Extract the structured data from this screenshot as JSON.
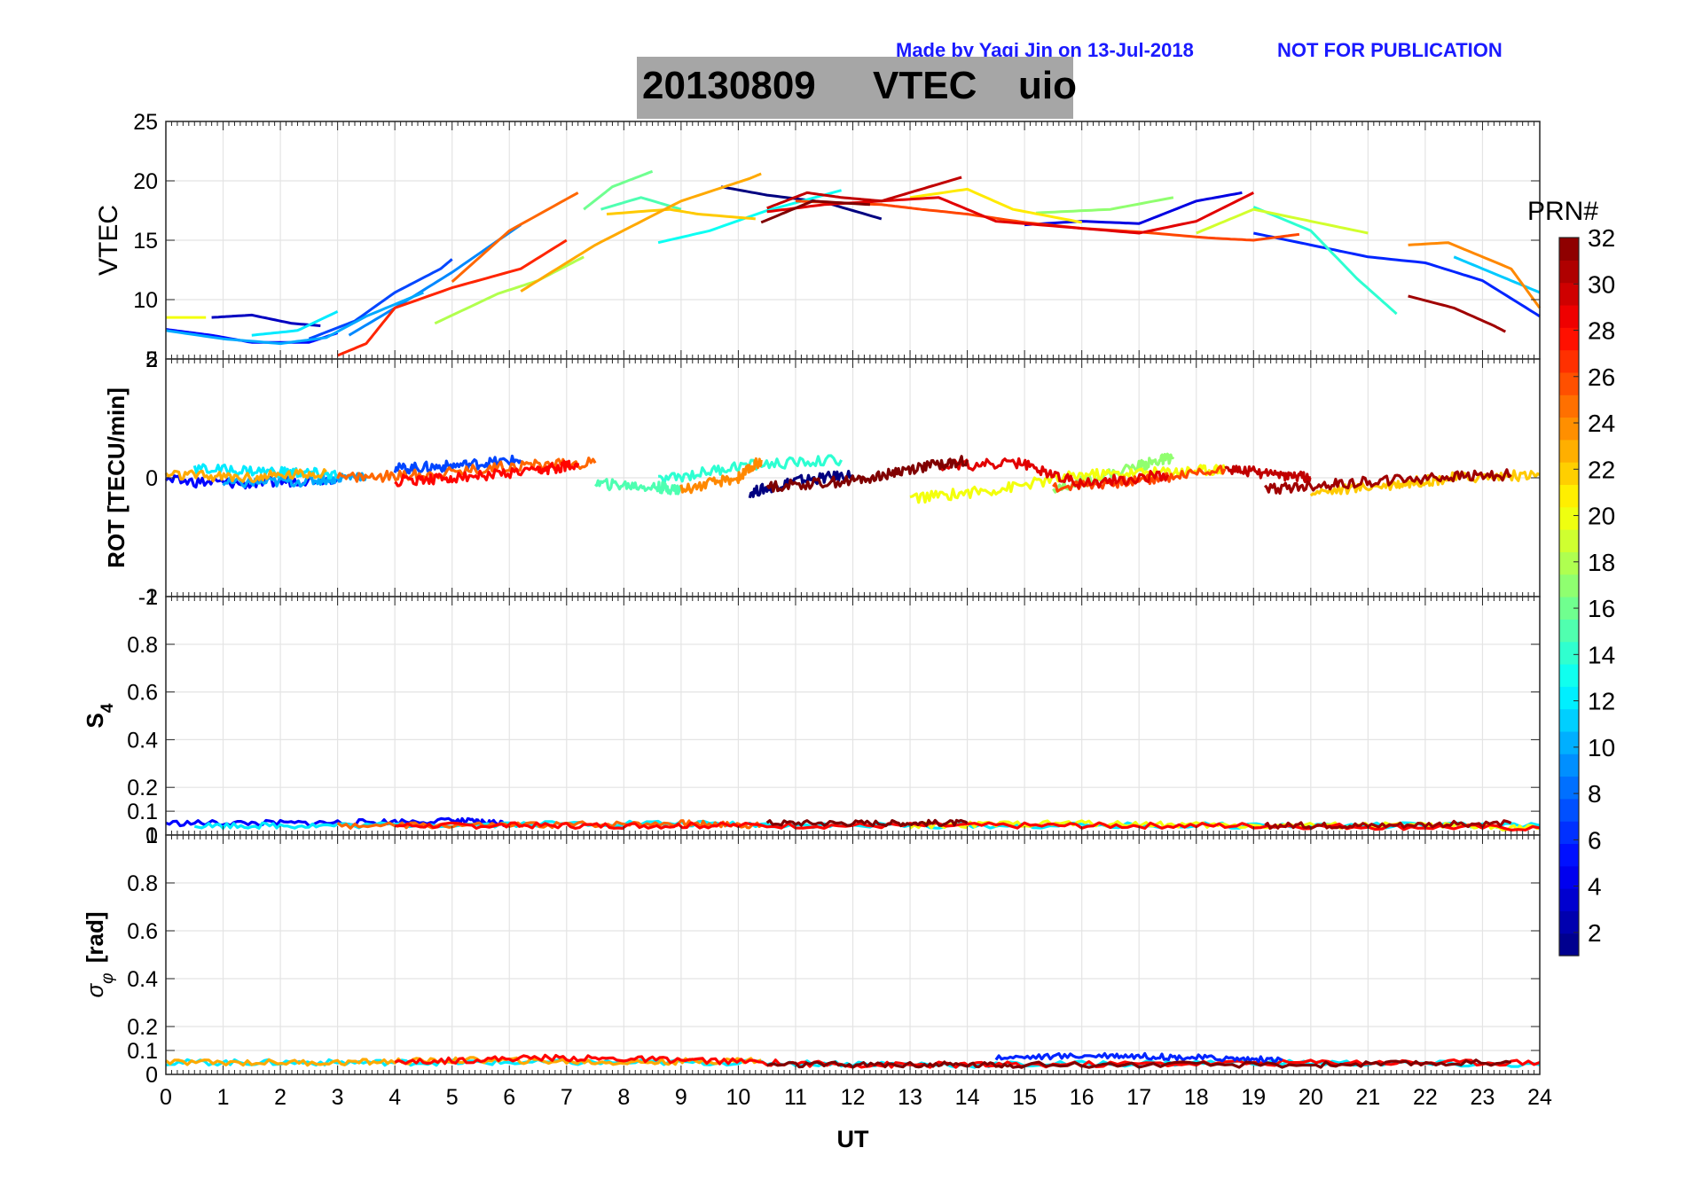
{
  "header": {
    "credit": "Made by Yaqi Jin on 13-Jul-2018",
    "notice": "NOT FOR PUBLICATION",
    "title_date": "20130809",
    "title_variable": "VTEC",
    "title_station": "uio",
    "credit_color": "#1a1aff"
  },
  "chart_data": [
    {
      "id": "vtec",
      "type": "line",
      "ylabel": "VTEC",
      "xlabel": "",
      "xlim": [
        0,
        24
      ],
      "ylim": [
        5,
        25
      ],
      "yticks": [
        5,
        10,
        15,
        20,
        25
      ],
      "series": [
        {
          "name": "PRN 1",
          "prn": 1,
          "x": [
            9.7,
            10.5,
            11.5,
            12.5
          ],
          "values": [
            19.5,
            18.8,
            18.2,
            16.8
          ]
        },
        {
          "name": "PRN 3",
          "prn": 3,
          "x": [
            0.8,
            1.5,
            2.2,
            2.7
          ],
          "values": [
            8.5,
            8.7,
            8.0,
            7.8
          ]
        },
        {
          "name": "PRN 4",
          "prn": 4,
          "x": [
            15.0,
            16.0,
            17.0,
            18.0,
            18.8
          ],
          "values": [
            16.3,
            16.6,
            16.4,
            18.3,
            19.0
          ]
        },
        {
          "name": "PRN 5",
          "prn": 5,
          "x": [
            0.0,
            0.8,
            1.5,
            2.5,
            3.0
          ],
          "values": [
            7.5,
            7.0,
            6.4,
            6.4,
            7.2
          ]
        },
        {
          "name": "PRN 6",
          "prn": 6,
          "x": [
            19.0,
            20.0,
            21.0,
            22.0,
            23.0,
            24.0
          ],
          "values": [
            15.6,
            14.6,
            13.6,
            13.1,
            11.6,
            8.6
          ]
        },
        {
          "name": "PRN 7",
          "prn": 7,
          "x": [
            2.5,
            3.3,
            4.0,
            4.8,
            5.0
          ],
          "values": [
            6.7,
            8.2,
            10.6,
            12.6,
            13.4
          ]
        },
        {
          "name": "PRN 9",
          "prn": 9,
          "x": [
            3.2,
            4.0,
            5.0,
            6.2
          ],
          "values": [
            7.0,
            9.3,
            12.3,
            16.3
          ]
        },
        {
          "name": "PRN 10",
          "prn": 10,
          "x": [
            0.0,
            1.0,
            2.0,
            2.8,
            3.5,
            4.5
          ],
          "values": [
            7.4,
            6.7,
            6.3,
            6.8,
            8.6,
            10.6
          ]
        },
        {
          "name": "PRN 11",
          "prn": 11,
          "x": [
            22.5,
            23.5,
            24.0
          ],
          "values": [
            13.6,
            11.6,
            10.6
          ]
        },
        {
          "name": "PRN 12",
          "prn": 12,
          "x": [
            1.5,
            2.3,
            3.0
          ],
          "values": [
            7.0,
            7.4,
            9.0
          ]
        },
        {
          "name": "PRN 13",
          "prn": 13,
          "x": [
            8.6,
            9.5,
            10.5,
            11.8
          ],
          "values": [
            14.8,
            15.8,
            17.5,
            19.2
          ]
        },
        {
          "name": "PRN 14",
          "prn": 14,
          "x": [
            19.0,
            20.0,
            20.8,
            21.5
          ],
          "values": [
            17.8,
            15.8,
            11.8,
            8.8
          ]
        },
        {
          "name": "PRN 15",
          "prn": 15,
          "x": [
            7.6,
            8.3,
            9.0
          ],
          "values": [
            17.6,
            18.6,
            17.6
          ]
        },
        {
          "name": "PRN 16",
          "prn": 16,
          "x": [
            7.3,
            7.8,
            8.5
          ],
          "values": [
            17.6,
            19.5,
            20.8
          ]
        },
        {
          "name": "PRN 17",
          "prn": 17,
          "x": [
            15.2,
            16.5,
            17.6
          ],
          "values": [
            17.3,
            17.6,
            18.6
          ]
        },
        {
          "name": "PRN 18",
          "prn": 18,
          "x": [
            4.7,
            5.8,
            6.5,
            7.3
          ],
          "values": [
            8.0,
            10.5,
            11.6,
            13.6
          ]
        },
        {
          "name": "PRN 19",
          "prn": 19,
          "x": [
            18.0,
            19.0,
            20.0,
            21.0
          ],
          "values": [
            15.6,
            17.6,
            16.6,
            15.6
          ]
        },
        {
          "name": "PRN 20",
          "prn": 20,
          "x": [
            0.0,
            0.7
          ],
          "values": [
            8.5,
            8.5
          ]
        },
        {
          "name": "PRN 21",
          "prn": 21,
          "x": [
            13.0,
            14.0,
            14.8,
            16.0
          ],
          "values": [
            18.6,
            19.3,
            17.6,
            16.5
          ]
        },
        {
          "name": "PRN 22",
          "prn": 22,
          "x": [
            7.7,
            8.8,
            9.3,
            10.3
          ],
          "values": [
            17.2,
            17.6,
            17.2,
            16.8
          ]
        },
        {
          "name": "PRN 23",
          "prn": 23,
          "x": [
            6.2,
            7.5,
            9.0,
            10.2,
            10.4
          ],
          "values": [
            10.7,
            14.6,
            18.3,
            20.2,
            20.6
          ]
        },
        {
          "name": "PRN 24",
          "prn": 24,
          "x": [
            21.7,
            22.4,
            23.5,
            24.0
          ],
          "values": [
            14.6,
            14.8,
            12.6,
            9.3
          ]
        },
        {
          "name": "PRN 25",
          "prn": 25,
          "x": [
            5.0,
            6.0,
            7.2
          ],
          "values": [
            11.5,
            15.8,
            19.0
          ]
        },
        {
          "name": "PRN 26",
          "prn": 26,
          "x": [
            11.0,
            12.5,
            13.2,
            14.0,
            15.0,
            16.0,
            17.0,
            18.2,
            19.0,
            19.8
          ],
          "values": [
            18.3,
            18.0,
            17.6,
            17.2,
            16.5,
            16.0,
            15.7,
            15.2,
            15.0,
            15.5
          ]
        },
        {
          "name": "PRN 27",
          "prn": 27,
          "x": [
            3.0,
            3.5,
            4.0,
            5.0,
            6.2,
            7.0
          ],
          "values": [
            5.3,
            6.3,
            9.3,
            11.0,
            12.6,
            15.0
          ]
        },
        {
          "name": "PRN 29",
          "prn": 29,
          "x": [
            10.5,
            11.5,
            12.5,
            13.5,
            14.5,
            16.0,
            17.0,
            18.0,
            19.0
          ],
          "values": [
            17.4,
            18.0,
            18.3,
            18.6,
            16.6,
            16.0,
            15.6,
            16.6,
            19.0
          ]
        },
        {
          "name": "PRN 30",
          "prn": 30,
          "x": [
            10.5,
            11.2,
            11.8,
            12.5,
            13.2,
            13.9
          ],
          "values": [
            17.7,
            19.0,
            18.6,
            18.3,
            19.3,
            20.3
          ]
        },
        {
          "name": "PRN 31",
          "prn": 31,
          "x": [
            21.7,
            22.5,
            23.2,
            23.4
          ],
          "values": [
            10.3,
            9.3,
            7.8,
            7.3
          ]
        },
        {
          "name": "PRN 32",
          "prn": 32,
          "x": [
            10.4,
            11.3,
            12.3
          ],
          "values": [
            16.5,
            18.3,
            18.0
          ]
        }
      ]
    },
    {
      "id": "rot",
      "type": "line",
      "ylabel": "ROT [TECU/min]",
      "xlabel": "",
      "xlim": [
        0,
        24
      ],
      "ylim": [
        -2,
        2
      ],
      "yticks": [
        -2,
        0,
        2
      ],
      "series": [
        {
          "name": "PRN 1",
          "prn": 1,
          "x": [
            10.2,
            11.0,
            12.0
          ],
          "values": [
            -0.25,
            -0.05,
            0.05
          ]
        },
        {
          "name": "PRN 5",
          "prn": 5,
          "x": [
            0.0,
            1.5,
            3.0
          ],
          "values": [
            -0.05,
            -0.1,
            0.0
          ]
        },
        {
          "name": "PRN 7",
          "prn": 7,
          "x": [
            4.0,
            5.0,
            6.2
          ],
          "values": [
            0.15,
            0.2,
            0.3
          ]
        },
        {
          "name": "PRN 10",
          "prn": 10,
          "x": [
            1.0,
            2.5,
            3.5
          ],
          "values": [
            -0.1,
            -0.05,
            0.05
          ]
        },
        {
          "name": "PRN 12",
          "prn": 12,
          "x": [
            0.5,
            2.0,
            3.0
          ],
          "values": [
            0.15,
            0.1,
            0.05
          ]
        },
        {
          "name": "PRN 14",
          "prn": 14,
          "x": [
            8.6,
            10.0,
            11.8
          ],
          "values": [
            -0.05,
            0.2,
            0.3
          ]
        },
        {
          "name": "PRN 15",
          "prn": 15,
          "x": [
            7.5,
            8.5,
            9.0
          ],
          "values": [
            -0.1,
            -0.15,
            -0.2
          ]
        },
        {
          "name": "PRN 17",
          "prn": 17,
          "x": [
            15.5,
            17.0,
            17.6
          ],
          "values": [
            -0.2,
            0.2,
            0.35
          ]
        },
        {
          "name": "PRN 20",
          "prn": 20,
          "x": [
            13.0,
            14.5,
            16.0,
            17.5,
            18.5
          ],
          "values": [
            -0.35,
            -0.2,
            0.05,
            0.1,
            0.15
          ]
        },
        {
          "name": "PRN 22",
          "prn": 22,
          "x": [
            20.0,
            21.5,
            22.5,
            24.0
          ],
          "values": [
            -0.25,
            -0.1,
            0.0,
            0.05
          ]
        },
        {
          "name": "PRN 23",
          "prn": 23,
          "x": [
            0.0,
            1.5,
            2.8
          ],
          "values": [
            0.05,
            0.0,
            0.1
          ]
        },
        {
          "name": "PRN 24",
          "prn": 24,
          "x": [
            9.0,
            10.0,
            10.4
          ],
          "values": [
            -0.2,
            0.0,
            0.3
          ]
        },
        {
          "name": "PRN 25",
          "prn": 25,
          "x": [
            3.0,
            4.5,
            6.0,
            7.5
          ],
          "values": [
            0.0,
            0.05,
            0.2,
            0.25
          ]
        },
        {
          "name": "PRN 26",
          "prn": 26,
          "x": [
            15.5,
            17.0,
            18.5
          ],
          "values": [
            -0.15,
            -0.05,
            0.15
          ]
        },
        {
          "name": "PRN 28",
          "prn": 28,
          "x": [
            4.0,
            5.0,
            6.5,
            7.2
          ],
          "values": [
            -0.05,
            0.0,
            0.1,
            0.25
          ]
        },
        {
          "name": "PRN 29",
          "prn": 29,
          "x": [
            13.5,
            14.9,
            16.0,
            17.5
          ],
          "values": [
            0.2,
            0.25,
            -0.1,
            0.05
          ]
        },
        {
          "name": "PRN 30",
          "prn": 30,
          "x": [
            18.5,
            19.5,
            20.0
          ],
          "values": [
            0.15,
            0.05,
            0.0
          ]
        },
        {
          "name": "PRN 31",
          "prn": 31,
          "x": [
            19.2,
            20.5,
            22.0,
            23.5
          ],
          "values": [
            -0.2,
            -0.1,
            0.0,
            0.05
          ]
        },
        {
          "name": "PRN 32",
          "prn": 32,
          "x": [
            10.5,
            12.0,
            13.0,
            14.0
          ],
          "values": [
            -0.15,
            -0.05,
            0.15,
            0.3
          ]
        }
      ]
    },
    {
      "id": "s4",
      "type": "line",
      "ylabel": "S4",
      "xlabel": "",
      "xlim": [
        0,
        24
      ],
      "ylim": [
        0,
        1
      ],
      "yticks": [
        0,
        0.1,
        0.2,
        0.4,
        0.6,
        0.8,
        1
      ],
      "series": [
        {
          "name": "PRN 5",
          "prn": 5,
          "x": [
            0.0,
            2.5,
            5.0,
            6.0
          ],
          "values": [
            0.05,
            0.05,
            0.06,
            0.05
          ]
        },
        {
          "name": "PRN 12",
          "prn": 12,
          "x": [
            0.5,
            3.0,
            8.0,
            12.0,
            18.0,
            24.0
          ],
          "values": [
            0.04,
            0.04,
            0.05,
            0.04,
            0.04,
            0.04
          ]
        },
        {
          "name": "PRN 20",
          "prn": 20,
          "x": [
            13.0,
            16.0,
            18.5,
            22.0,
            24.0
          ],
          "values": [
            0.04,
            0.05,
            0.04,
            0.04,
            0.03
          ]
        },
        {
          "name": "PRN 25",
          "prn": 25,
          "x": [
            3.0,
            6.0,
            9.0,
            10.4
          ],
          "values": [
            0.04,
            0.04,
            0.05,
            0.04
          ]
        },
        {
          "name": "PRN 28",
          "prn": 28,
          "x": [
            4.0,
            7.0,
            10.0,
            15.0,
            19.0,
            24.0
          ],
          "values": [
            0.04,
            0.04,
            0.04,
            0.04,
            0.04,
            0.03
          ]
        },
        {
          "name": "PRN 32",
          "prn": 32,
          "x": [
            10.5,
            12.5,
            14.0
          ],
          "values": [
            0.05,
            0.05,
            0.05
          ]
        },
        {
          "name": "PRN 31",
          "prn": 31,
          "x": [
            19.2,
            21.0,
            23.5
          ],
          "values": [
            0.04,
            0.04,
            0.05
          ]
        }
      ]
    },
    {
      "id": "sigma-phi",
      "type": "line",
      "ylabel": "σφ [rad]",
      "xlabel": "UT",
      "xlim": [
        0,
        24
      ],
      "xticks": [
        0,
        1,
        2,
        3,
        4,
        5,
        6,
        7,
        8,
        9,
        10,
        11,
        12,
        13,
        14,
        15,
        16,
        17,
        18,
        19,
        20,
        21,
        22,
        23,
        24
      ],
      "ylim": [
        0,
        1
      ],
      "yticks": [
        0,
        0.1,
        0.2,
        0.4,
        0.6,
        0.8,
        1
      ],
      "series": [
        {
          "name": "PRN 12",
          "prn": 12,
          "x": [
            0.0,
            3.0,
            6.0,
            10.0,
            14.0,
            19.0,
            24.0
          ],
          "values": [
            0.05,
            0.05,
            0.05,
            0.05,
            0.04,
            0.05,
            0.04
          ]
        },
        {
          "name": "PRN 23",
          "prn": 23,
          "x": [
            0.0,
            3.0,
            5.5,
            8.0,
            10.4
          ],
          "values": [
            0.05,
            0.05,
            0.06,
            0.05,
            0.06
          ]
        },
        {
          "name": "PRN 28",
          "prn": 28,
          "x": [
            4.0,
            6.5,
            9.0,
            12.0,
            15.0,
            20.0,
            24.0
          ],
          "values": [
            0.05,
            0.07,
            0.06,
            0.04,
            0.04,
            0.05,
            0.05
          ]
        },
        {
          "name": "PRN 6",
          "prn": 6,
          "x": [
            14.5,
            16.5,
            18.0,
            19.5
          ],
          "values": [
            0.07,
            0.08,
            0.07,
            0.06
          ]
        },
        {
          "name": "PRN 32",
          "prn": 32,
          "x": [
            10.5,
            13.0,
            15.0,
            20.0,
            23.5
          ],
          "values": [
            0.04,
            0.04,
            0.04,
            0.04,
            0.05
          ]
        }
      ]
    }
  ],
  "colorbar": {
    "title": "PRN#",
    "range": [
      1,
      32
    ],
    "ticks": [
      2,
      4,
      6,
      8,
      10,
      12,
      14,
      16,
      18,
      20,
      22,
      24,
      26,
      28,
      30,
      32
    ]
  }
}
